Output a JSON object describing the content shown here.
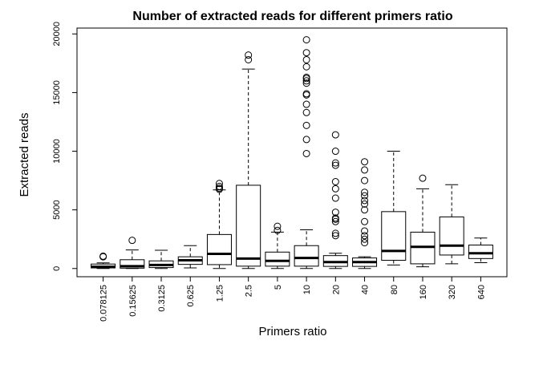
{
  "chart_data": {
    "type": "boxplot",
    "title": "Number of extracted reads for different primers ratio",
    "xlabel": "Primers ratio",
    "ylabel": "Extracted reads",
    "ylim": [
      -700,
      20500
    ],
    "yticks": [
      0,
      5000,
      10000,
      15000,
      20000
    ],
    "ytick_labels": [
      "0",
      "5000",
      "10000",
      "15000",
      "20000"
    ],
    "grid": false,
    "categories": [
      "0.078125",
      "0.15625",
      "0.3125",
      "0.625",
      "1.25",
      "2.5",
      "5",
      "10",
      "20",
      "40",
      "80",
      "160",
      "320",
      "640"
    ],
    "boxes": [
      {
        "lw": 0,
        "q1": 50,
        "med": 150,
        "q3": 380,
        "uw": 480,
        "outliers": [
          1000,
          1050
        ]
      },
      {
        "lw": 0,
        "q1": 30,
        "med": 200,
        "q3": 750,
        "uw": 1580,
        "outliers": [
          2400
        ]
      },
      {
        "lw": 0,
        "q1": 80,
        "med": 300,
        "q3": 650,
        "uw": 1560,
        "outliers": []
      },
      {
        "lw": 50,
        "q1": 350,
        "med": 700,
        "q3": 1000,
        "uw": 1950,
        "outliers": []
      },
      {
        "lw": 0,
        "q1": 330,
        "med": 1250,
        "q3": 2900,
        "uw": 6700,
        "outliers": [
          6750,
          6850,
          7000,
          7250
        ]
      },
      {
        "lw": 0,
        "q1": 200,
        "med": 850,
        "q3": 7100,
        "uw": 17000,
        "outliers": [
          17800,
          18200
        ]
      },
      {
        "lw": 0,
        "q1": 200,
        "med": 650,
        "q3": 1400,
        "uw": 3100,
        "outliers": [
          3250,
          3600
        ]
      },
      {
        "lw": 0,
        "q1": 200,
        "med": 900,
        "q3": 1950,
        "uw": 3300,
        "outliers": [
          9800,
          11000,
          12200,
          13300,
          14000,
          14800,
          14900,
          15800,
          16000,
          16200,
          16300,
          17200,
          17800,
          18400,
          19500
        ]
      },
      {
        "lw": 0,
        "q1": 180,
        "med": 550,
        "q3": 1100,
        "uw": 1300,
        "outliers": [
          2800,
          3000,
          4000,
          4200,
          4300,
          4800,
          6000,
          6800,
          7400,
          8800,
          9000,
          10000,
          11400
        ]
      },
      {
        "lw": 0,
        "q1": 180,
        "med": 550,
        "q3": 900,
        "uw": 1000,
        "outliers": [
          2200,
          2500,
          2800,
          3200,
          4000,
          5000,
          5500,
          5800,
          6200,
          6500,
          7500,
          8400,
          9100
        ]
      },
      {
        "lw": 300,
        "q1": 700,
        "med": 1500,
        "q3": 4850,
        "uw": 10000,
        "outliers": []
      },
      {
        "lw": 150,
        "q1": 400,
        "med": 1850,
        "q3": 3100,
        "uw": 6800,
        "outliers": [
          7700
        ]
      },
      {
        "lw": 400,
        "q1": 1150,
        "med": 1950,
        "q3": 4400,
        "uw": 7150,
        "outliers": []
      },
      {
        "lw": 500,
        "q1": 850,
        "med": 1300,
        "q3": 2000,
        "uw": 2600,
        "outliers": []
      }
    ]
  }
}
